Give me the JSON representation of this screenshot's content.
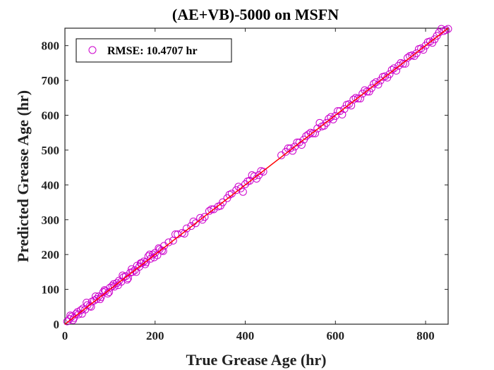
{
  "chart_data": {
    "type": "scatter",
    "title": "(AE+VB)-5000 on MSFN",
    "xlabel": "True Grease Age (hr)",
    "ylabel": "Predicted Grease Age (hr)",
    "xlim": [
      0,
      850
    ],
    "ylim": [
      0,
      850
    ],
    "xticks": [
      0,
      200,
      400,
      600,
      800
    ],
    "yticks": [
      0,
      100,
      200,
      300,
      400,
      500,
      600,
      700,
      800
    ],
    "grid": false,
    "legend_position": "top-left",
    "series": [
      {
        "name": "RMSE: 10.4707 hr",
        "marker": "open-circle",
        "color": "#cc00cc",
        "x": [
          5,
          10,
          15,
          20,
          25,
          30,
          35,
          40,
          45,
          50,
          55,
          60,
          65,
          70,
          75,
          80,
          85,
          90,
          95,
          100,
          105,
          110,
          115,
          120,
          125,
          130,
          135,
          140,
          145,
          150,
          155,
          160,
          165,
          170,
          175,
          180,
          185,
          190,
          195,
          200,
          205,
          210,
          215,
          220,
          230,
          240,
          250,
          260,
          270,
          280,
          290,
          300,
          310,
          320,
          330,
          340,
          350,
          360,
          370,
          380,
          390,
          400,
          410,
          420,
          430,
          440,
          480,
          490,
          500,
          510,
          520,
          530,
          540,
          550,
          560,
          570,
          580,
          590,
          600,
          610,
          620,
          630,
          640,
          650,
          660,
          670,
          680,
          690,
          700,
          710,
          720,
          730,
          740,
          750,
          760,
          770,
          780,
          790,
          800,
          810,
          820,
          830,
          840,
          845,
          850,
          12,
          18,
          28,
          38,
          48,
          58,
          68,
          78,
          88,
          98,
          108,
          118,
          128,
          138,
          148,
          158,
          168,
          178,
          188,
          198,
          208,
          218,
          245,
          265,
          285,
          305,
          325,
          345,
          365,
          385,
          395,
          405,
          415,
          425,
          435,
          495,
          505,
          515,
          525,
          535,
          545,
          555,
          565,
          575,
          585,
          595,
          605,
          615,
          625,
          635,
          645,
          655,
          665,
          675,
          685,
          695,
          705,
          715,
          725,
          735,
          745,
          755,
          765,
          775,
          785,
          795,
          805,
          815,
          825,
          835
        ],
        "y": [
          8,
          15,
          22,
          18,
          30,
          28,
          40,
          45,
          42,
          55,
          52,
          65,
          68,
          72,
          80,
          78,
          92,
          95,
          88,
          105,
          110,
          108,
          118,
          125,
          122,
          135,
          138,
          132,
          148,
          150,
          155,
          168,
          165,
          175,
          180,
          178,
          195,
          188,
          200,
          205,
          198,
          215,
          212,
          225,
          235,
          240,
          258,
          262,
          275,
          282,
          290,
          305,
          308,
          325,
          330,
          338,
          350,
          362,
          375,
          385,
          390,
          402,
          412,
          425,
          428,
          438,
          485,
          495,
          505,
          510,
          522,
          530,
          545,
          548,
          562,
          568,
          578,
          595,
          598,
          612,
          618,
          632,
          645,
          648,
          662,
          668,
          678,
          695,
          700,
          712,
          718,
          735,
          742,
          748,
          765,
          772,
          778,
          792,
          800,
          812,
          818,
          838,
          842,
          845,
          848,
          25,
          12,
          35,
          30,
          62,
          50,
          80,
          72,
          98,
          92,
          115,
          112,
          140,
          128,
          158,
          150,
          175,
          172,
          200,
          192,
          218,
          210,
          258,
          260,
          295,
          300,
          330,
          340,
          372,
          395,
          380,
          410,
          428,
          418,
          440,
          505,
          498,
          522,
          515,
          540,
          550,
          548,
          578,
          570,
          590,
          588,
          612,
          602,
          630,
          628,
          650,
          648,
          672,
          668,
          690,
          688,
          710,
          708,
          730,
          728,
          750,
          748,
          770,
          770,
          790,
          788,
          810,
          808,
          828,
          848
        ]
      },
      {
        "name": "",
        "type": "line",
        "color": "#ff0000",
        "x": [
          0,
          850
        ],
        "y": [
          0,
          850
        ]
      }
    ]
  }
}
